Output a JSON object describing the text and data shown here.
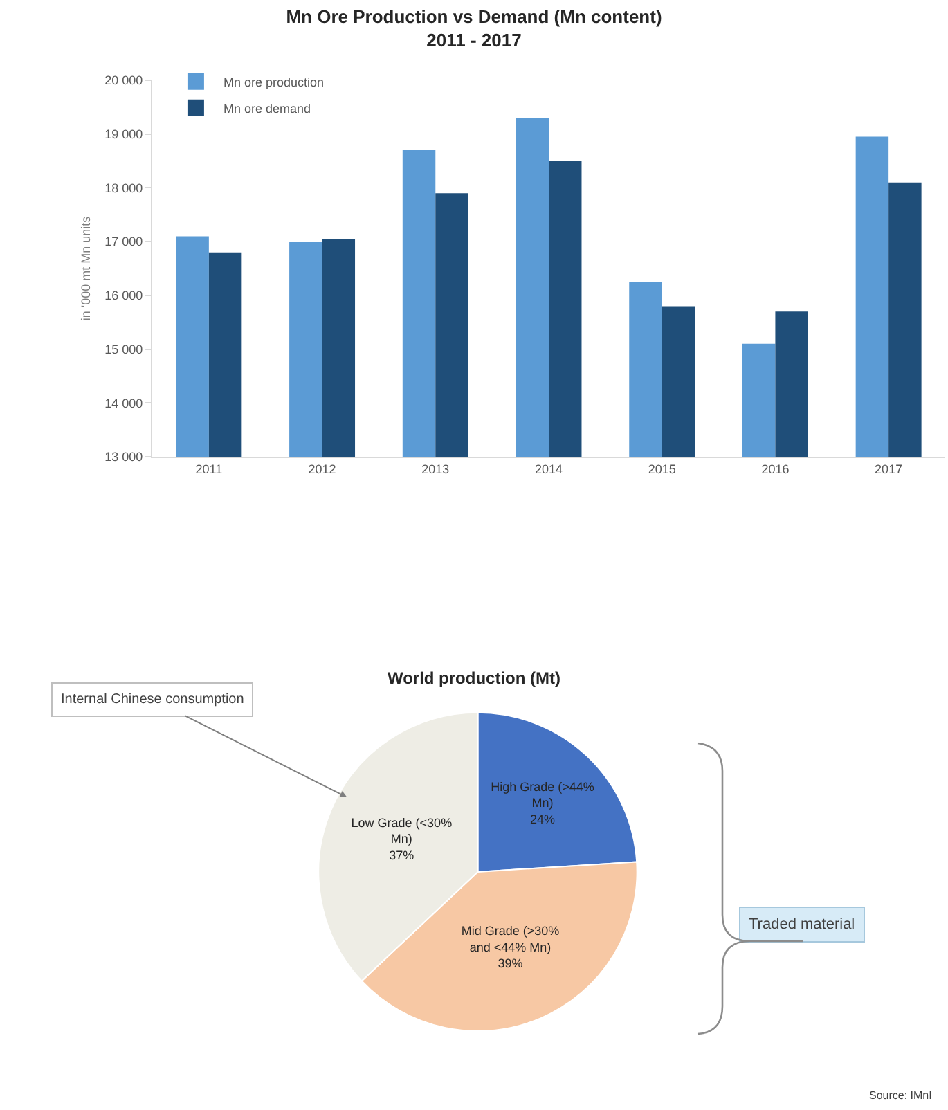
{
  "chart_data": [
    {
      "type": "bar",
      "title": "Mn Ore Production vs Demand (Mn content)",
      "subtitle": "2011 - 2017",
      "ylabel": "in '000 mt Mn units",
      "categories": [
        "2011",
        "2012",
        "2013",
        "2014",
        "2015",
        "2016",
        "2017"
      ],
      "series": [
        {
          "name": "Mn ore production",
          "color": "#5b9bd5",
          "values": [
            17100,
            17000,
            18700,
            19300,
            16250,
            15100,
            18950
          ]
        },
        {
          "name": "Mn ore demand",
          "color": "#1f4e79",
          "values": [
            16800,
            17050,
            17900,
            18500,
            15800,
            15700,
            18100
          ]
        }
      ],
      "ylim": [
        13000,
        20000
      ],
      "yticks": [
        {
          "value": 13000,
          "label": "13 000"
        },
        {
          "value": 14000,
          "label": "14 000"
        },
        {
          "value": 15000,
          "label": "15 000"
        },
        {
          "value": 16000,
          "label": "16 000"
        },
        {
          "value": 17000,
          "label": "17 000"
        },
        {
          "value": 18000,
          "label": "18 000"
        },
        {
          "value": 19000,
          "label": "19 000"
        },
        {
          "value": 20000,
          "label": "20 000"
        }
      ],
      "legend": "top left"
    },
    {
      "type": "pie",
      "title": "World production (Mt)",
      "categories": [
        "High Grade (>44% Mn)",
        "Mid Grade (>30% and <44% Mn)",
        "Low Grade (<30% Mn)"
      ],
      "values": [
        24,
        39,
        37
      ],
      "colors": [
        "#4472c4",
        "#f7c8a4",
        "#eeede5"
      ],
      "value_labels": [
        "24%",
        "39%",
        "37%"
      ],
      "annotations": [
        "Internal Chinese consumption",
        "Traded material",
        "Source: IMnI"
      ]
    }
  ]
}
